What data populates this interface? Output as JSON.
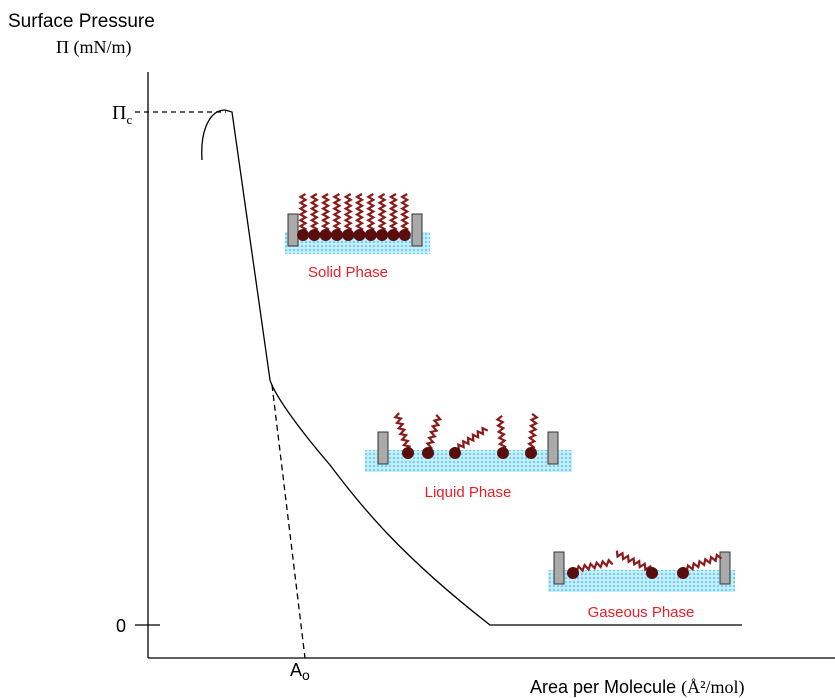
{
  "y_axis": {
    "title": "Surface Pressure",
    "unit": "Π (mN/m)",
    "ticks": [
      {
        "symbol": "Π",
        "subscript": "c"
      },
      {
        "symbol": "0"
      }
    ]
  },
  "x_axis": {
    "title": "Area per Molecule",
    "unit": "(Å²/mol)",
    "mark": {
      "symbol": "A",
      "subscript": "o"
    }
  },
  "phases": [
    "Solid Phase",
    "Liquid Phase",
    "Gaseous Phase"
  ]
}
